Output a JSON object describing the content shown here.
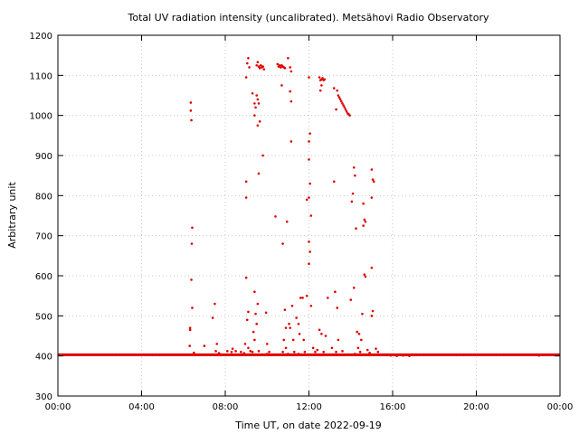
{
  "chart_data": {
    "type": "scatter",
    "title": "Total UV radiation intensity (uncalibrated). Metsähovi Radio Observatory",
    "xlabel": "Time UT, on date 2022-09-19",
    "ylabel": "Arbitrary unit",
    "xlim": [
      0,
      24
    ],
    "ylim": [
      300,
      1200
    ],
    "x_unit": "hours UT",
    "grid": true,
    "x_ticks": [
      {
        "v": 0,
        "label": "00:00"
      },
      {
        "v": 4,
        "label": "04:00"
      },
      {
        "v": 8,
        "label": "08:00"
      },
      {
        "v": 12,
        "label": "12:00"
      },
      {
        "v": 16,
        "label": "16:00"
      },
      {
        "v": 20,
        "label": "20:00"
      },
      {
        "v": 24,
        "label": "00:00"
      }
    ],
    "y_ticks": [
      {
        "v": 300,
        "label": "300"
      },
      {
        "v": 400,
        "label": "400"
      },
      {
        "v": 500,
        "label": "500"
      },
      {
        "v": 600,
        "label": "600"
      },
      {
        "v": 700,
        "label": "700"
      },
      {
        "v": 800,
        "label": "800"
      },
      {
        "v": 900,
        "label": "900"
      },
      {
        "v": 1000,
        "label": "1000"
      },
      {
        "v": 1100,
        "label": "1100"
      },
      {
        "v": 1200,
        "label": "1200"
      }
    ],
    "color": "#e00000",
    "baseline": {
      "x_start": 0,
      "x_end": 24,
      "y": 403
    },
    "points": [
      [
        6.35,
        1032
      ],
      [
        6.35,
        1012
      ],
      [
        6.38,
        988
      ],
      [
        6.42,
        720
      ],
      [
        6.4,
        680
      ],
      [
        6.38,
        590
      ],
      [
        6.42,
        520
      ],
      [
        6.32,
        470
      ],
      [
        6.32,
        465
      ],
      [
        6.3,
        425
      ],
      [
        6.5,
        408
      ],
      [
        7.0,
        425
      ],
      [
        7.4,
        495
      ],
      [
        7.5,
        530
      ],
      [
        7.6,
        430
      ],
      [
        7.55,
        412
      ],
      [
        7.7,
        407
      ],
      [
        8.1,
        412
      ],
      [
        8.3,
        410
      ],
      [
        8.35,
        418
      ],
      [
        8.5,
        412
      ],
      [
        8.75,
        410
      ],
      [
        8.9,
        407
      ],
      [
        9.0,
        1095
      ],
      [
        9.05,
        1130
      ],
      [
        9.1,
        1143
      ],
      [
        9.15,
        1120
      ],
      [
        9.0,
        835
      ],
      [
        9.0,
        795
      ],
      [
        9.0,
        595
      ],
      [
        9.05,
        490
      ],
      [
        9.1,
        510
      ],
      [
        8.95,
        430
      ],
      [
        9.1,
        420
      ],
      [
        9.2,
        412
      ],
      [
        9.3,
        1055
      ],
      [
        9.4,
        1030
      ],
      [
        9.45,
        1020
      ],
      [
        9.4,
        1000
      ],
      [
        9.5,
        1125
      ],
      [
        9.55,
        1133
      ],
      [
        9.6,
        1122
      ],
      [
        9.65,
        1118
      ],
      [
        9.7,
        1125
      ],
      [
        9.75,
        1120
      ],
      [
        9.8,
        1122
      ],
      [
        9.85,
        1115
      ],
      [
        9.5,
        1050
      ],
      [
        9.55,
        1040
      ],
      [
        9.6,
        1030
      ],
      [
        9.55,
        975
      ],
      [
        9.65,
        985
      ],
      [
        9.6,
        855
      ],
      [
        9.8,
        900
      ],
      [
        9.4,
        560
      ],
      [
        9.55,
        530
      ],
      [
        9.45,
        505
      ],
      [
        9.5,
        480
      ],
      [
        9.35,
        460
      ],
      [
        9.4,
        440
      ],
      [
        9.3,
        410
      ],
      [
        9.6,
        412
      ],
      [
        10.0,
        405
      ],
      [
        10.1,
        410
      ],
      [
        10.2,
        403
      ],
      [
        9.95,
        508
      ],
      [
        10.0,
        430
      ],
      [
        10.5,
        1128
      ],
      [
        10.55,
        1122
      ],
      [
        10.6,
        1125
      ],
      [
        10.65,
        1120
      ],
      [
        10.7,
        1125
      ],
      [
        10.75,
        1122
      ],
      [
        10.8,
        1120
      ],
      [
        10.85,
        1118
      ],
      [
        10.7,
        1075
      ],
      [
        10.4,
        748
      ],
      [
        10.75,
        680
      ],
      [
        10.95,
        735
      ],
      [
        10.85,
        515
      ],
      [
        10.9,
        470
      ],
      [
        10.8,
        440
      ],
      [
        10.9,
        420
      ],
      [
        10.75,
        410
      ],
      [
        11.0,
        1143
      ],
      [
        11.1,
        1120
      ],
      [
        11.15,
        1110
      ],
      [
        11.1,
        1060
      ],
      [
        11.15,
        1035
      ],
      [
        11.15,
        935
      ],
      [
        11.05,
        480
      ],
      [
        11.1,
        470
      ],
      [
        11.2,
        525
      ],
      [
        11.25,
        440
      ],
      [
        11.3,
        410
      ],
      [
        11.0,
        405
      ],
      [
        11.4,
        495
      ],
      [
        11.5,
        480
      ],
      [
        11.55,
        455
      ],
      [
        11.6,
        545
      ],
      [
        11.7,
        545
      ],
      [
        11.75,
        440
      ],
      [
        11.8,
        410
      ],
      [
        11.5,
        405
      ],
      [
        12.0,
        1095
      ],
      [
        12.05,
        955
      ],
      [
        12.0,
        935
      ],
      [
        12.0,
        890
      ],
      [
        12.05,
        830
      ],
      [
        12.0,
        795
      ],
      [
        11.9,
        790
      ],
      [
        12.1,
        750
      ],
      [
        12.0,
        685
      ],
      [
        12.05,
        660
      ],
      [
        12.0,
        630
      ],
      [
        11.9,
        550
      ],
      [
        12.1,
        525
      ],
      [
        12.2,
        420
      ],
      [
        12.3,
        410
      ],
      [
        12.5,
        1095
      ],
      [
        12.55,
        1088
      ],
      [
        12.6,
        1090
      ],
      [
        12.65,
        1093
      ],
      [
        12.7,
        1088
      ],
      [
        12.75,
        1090
      ],
      [
        12.6,
        1075
      ],
      [
        12.55,
        1062
      ],
      [
        12.5,
        465
      ],
      [
        12.6,
        455
      ],
      [
        12.8,
        450
      ],
      [
        12.9,
        545
      ],
      [
        12.4,
        415
      ],
      [
        12.7,
        410
      ],
      [
        13.2,
        1068
      ],
      [
        13.35,
        1062
      ],
      [
        13.4,
        1050
      ],
      [
        13.45,
        1045
      ],
      [
        13.5,
        1040
      ],
      [
        13.55,
        1035
      ],
      [
        13.6,
        1030
      ],
      [
        13.65,
        1025
      ],
      [
        13.7,
        1020
      ],
      [
        13.75,
        1015
      ],
      [
        13.8,
        1010
      ],
      [
        13.85,
        1005
      ],
      [
        13.9,
        1003
      ],
      [
        13.95,
        1000
      ],
      [
        13.3,
        1015
      ],
      [
        13.2,
        835
      ],
      [
        13.25,
        560
      ],
      [
        13.35,
        520
      ],
      [
        13.4,
        440
      ],
      [
        13.1,
        420
      ],
      [
        13.3,
        410
      ],
      [
        13.6,
        412
      ],
      [
        14.0,
        540
      ],
      [
        14.05,
        785
      ],
      [
        14.15,
        870
      ],
      [
        14.2,
        850
      ],
      [
        14.1,
        805
      ],
      [
        14.25,
        718
      ],
      [
        14.15,
        570
      ],
      [
        14.3,
        460
      ],
      [
        14.4,
        455
      ],
      [
        14.5,
        440
      ],
      [
        14.35,
        420
      ],
      [
        14.45,
        410
      ],
      [
        14.2,
        405
      ],
      [
        14.6,
        780
      ],
      [
        14.65,
        740
      ],
      [
        14.7,
        735
      ],
      [
        14.6,
        725
      ],
      [
        14.65,
        603
      ],
      [
        14.7,
        598
      ],
      [
        14.55,
        505
      ],
      [
        14.8,
        415
      ],
      [
        14.9,
        408
      ],
      [
        15.0,
        865
      ],
      [
        15.05,
        840
      ],
      [
        15.1,
        835
      ],
      [
        15.0,
        795
      ],
      [
        15.0,
        620
      ],
      [
        15.05,
        512
      ],
      [
        15.0,
        500
      ],
      [
        15.2,
        418
      ],
      [
        15.3,
        410
      ],
      [
        15.5,
        403
      ],
      [
        15.7,
        402
      ],
      [
        15.9,
        401
      ],
      [
        16.2,
        400
      ],
      [
        16.5,
        401
      ],
      [
        16.8,
        400
      ],
      [
        23.0,
        401
      ]
    ]
  }
}
